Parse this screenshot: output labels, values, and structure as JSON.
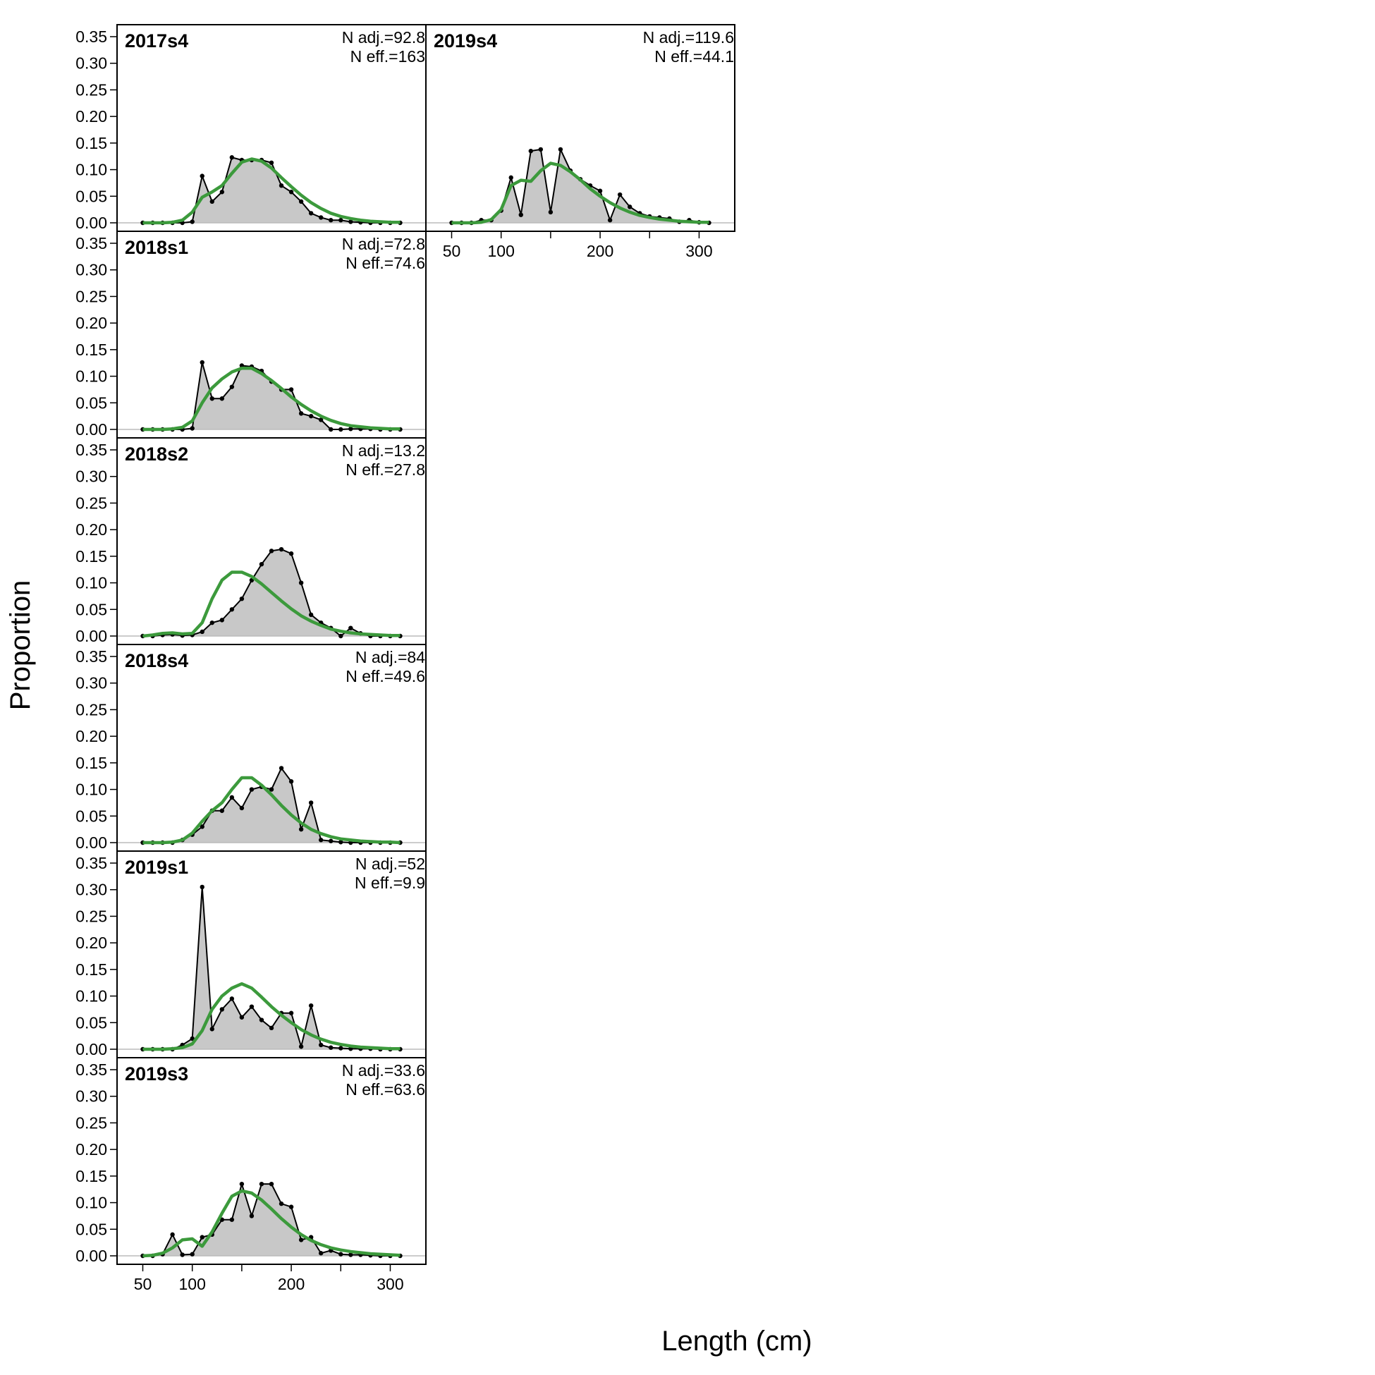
{
  "chart_data": {
    "type": "area",
    "xlabel": "Length (cm)",
    "ylabel": "Proportion",
    "xlim": [
      24,
      336
    ],
    "ylim": [
      0,
      0.35
    ],
    "x_ticks": [
      50,
      100,
      200,
      300
    ],
    "y_ticks": [
      "0.00",
      "0.05",
      "0.10",
      "0.15",
      "0.20",
      "0.25",
      "0.30",
      "0.35"
    ],
    "x": [
      50,
      60,
      70,
      80,
      90,
      100,
      110,
      120,
      130,
      140,
      150,
      160,
      170,
      180,
      190,
      200,
      210,
      220,
      230,
      240,
      250,
      260,
      270,
      280,
      290,
      300,
      310
    ],
    "colors": {
      "observed_fill": "#c8c8c8",
      "observed_line": "#000000",
      "expected_line": "#3c9a3c",
      "zero_line": "#bbbbbb"
    },
    "panels": [
      {
        "title": "2017s4",
        "n_adj": "N adj.=92.8",
        "n_eff": "N eff.=163",
        "observed": [
          0,
          0,
          0,
          0,
          0,
          0.002,
          0.088,
          0.04,
          0.058,
          0.123,
          0.118,
          0.118,
          0.118,
          0.113,
          0.07,
          0.058,
          0.04,
          0.018,
          0.01,
          0.005,
          0.005,
          0.002,
          0.001,
          0,
          0,
          0,
          0
        ],
        "expected": [
          0,
          0,
          0,
          0.001,
          0.005,
          0.02,
          0.048,
          0.058,
          0.07,
          0.093,
          0.114,
          0.12,
          0.116,
          0.103,
          0.085,
          0.068,
          0.052,
          0.038,
          0.027,
          0.018,
          0.012,
          0.008,
          0.005,
          0.003,
          0.002,
          0.001,
          0.001
        ]
      },
      {
        "title": "2018s1",
        "n_adj": "N adj.=72.8",
        "n_eff": "N eff.=74.6",
        "observed": [
          0,
          0,
          0,
          0,
          0,
          0.002,
          0.126,
          0.058,
          0.058,
          0.08,
          0.12,
          0.118,
          0.11,
          0.09,
          0.075,
          0.075,
          0.03,
          0.025,
          0.018,
          0,
          0,
          0.001,
          0.001,
          0.001,
          0,
          0,
          0
        ],
        "expected": [
          0,
          0,
          0,
          0.001,
          0.004,
          0.016,
          0.05,
          0.078,
          0.095,
          0.108,
          0.115,
          0.115,
          0.105,
          0.092,
          0.077,
          0.061,
          0.047,
          0.035,
          0.025,
          0.017,
          0.011,
          0.007,
          0.005,
          0.003,
          0.002,
          0.001,
          0.001
        ]
      },
      {
        "title": "2018s2",
        "n_adj": "N adj.=13.2",
        "n_eff": "N eff.=27.8",
        "observed": [
          0,
          0,
          0.002,
          0.003,
          0.001,
          0.002,
          0.008,
          0.025,
          0.03,
          0.05,
          0.07,
          0.105,
          0.135,
          0.16,
          0.163,
          0.155,
          0.1,
          0.04,
          0.025,
          0.015,
          0,
          0.015,
          0.005,
          0,
          0,
          0,
          0
        ],
        "expected": [
          0,
          0.002,
          0.005,
          0.006,
          0.004,
          0.005,
          0.025,
          0.07,
          0.105,
          0.12,
          0.12,
          0.112,
          0.098,
          0.082,
          0.066,
          0.051,
          0.038,
          0.028,
          0.02,
          0.013,
          0.009,
          0.006,
          0.004,
          0.003,
          0.002,
          0.001,
          0.001
        ]
      },
      {
        "title": "2018s4",
        "n_adj": "N adj.=84",
        "n_eff": "N eff.=49.6",
        "observed": [
          0,
          0,
          0,
          0,
          0.005,
          0.015,
          0.03,
          0.06,
          0.06,
          0.085,
          0.065,
          0.1,
          0.105,
          0.1,
          0.14,
          0.115,
          0.025,
          0.075,
          0.005,
          0.003,
          0.001,
          0,
          0,
          0,
          0,
          0,
          0
        ],
        "expected": [
          0,
          0,
          0,
          0.001,
          0.005,
          0.018,
          0.04,
          0.06,
          0.075,
          0.1,
          0.122,
          0.122,
          0.108,
          0.09,
          0.07,
          0.052,
          0.037,
          0.025,
          0.017,
          0.011,
          0.007,
          0.005,
          0.003,
          0.002,
          0.001,
          0.001,
          0
        ]
      },
      {
        "title": "2019s1",
        "n_adj": "N adj.=52",
        "n_eff": "N eff.=9.9",
        "observed": [
          0,
          0,
          0,
          0,
          0.008,
          0.02,
          0.305,
          0.038,
          0.075,
          0.095,
          0.06,
          0.08,
          0.055,
          0.04,
          0.068,
          0.068,
          0.005,
          0.082,
          0.008,
          0.003,
          0.002,
          0.001,
          0.001,
          0.001,
          0,
          0,
          0
        ],
        "expected": [
          0,
          0,
          0,
          0.001,
          0.003,
          0.01,
          0.035,
          0.075,
          0.1,
          0.115,
          0.123,
          0.115,
          0.098,
          0.08,
          0.064,
          0.05,
          0.037,
          0.027,
          0.019,
          0.013,
          0.009,
          0.006,
          0.004,
          0.003,
          0.002,
          0.001,
          0.001
        ]
      },
      {
        "title": "2019s3",
        "n_adj": "N adj.=33.6",
        "n_eff": "N eff.=63.6",
        "observed": [
          0,
          0,
          0.003,
          0.04,
          0.002,
          0.003,
          0.035,
          0.04,
          0.068,
          0.068,
          0.135,
          0.075,
          0.135,
          0.135,
          0.098,
          0.092,
          0.03,
          0.035,
          0.005,
          0.01,
          0.003,
          0.002,
          0.002,
          0.001,
          0,
          0,
          0
        ],
        "expected": [
          0,
          0.001,
          0.005,
          0.015,
          0.03,
          0.032,
          0.018,
          0.045,
          0.08,
          0.112,
          0.122,
          0.118,
          0.105,
          0.088,
          0.07,
          0.054,
          0.04,
          0.029,
          0.021,
          0.015,
          0.011,
          0.008,
          0.006,
          0.004,
          0.003,
          0.002,
          0.001
        ]
      },
      {
        "title": "2019s4",
        "n_adj": "N adj.=119.6",
        "n_eff": "N eff.=44.1",
        "observed": [
          0,
          0,
          0,
          0.005,
          0.005,
          0.023,
          0.085,
          0.015,
          0.135,
          0.138,
          0.02,
          0.138,
          0.098,
          0.082,
          0.07,
          0.06,
          0.005,
          0.053,
          0.03,
          0.018,
          0.012,
          0.01,
          0.008,
          0.002,
          0.005,
          0.001,
          0
        ],
        "expected": [
          0,
          0,
          0,
          0.001,
          0.006,
          0.025,
          0.07,
          0.08,
          0.078,
          0.098,
          0.112,
          0.108,
          0.096,
          0.081,
          0.064,
          0.05,
          0.038,
          0.028,
          0.02,
          0.014,
          0.01,
          0.007,
          0.005,
          0.003,
          0.002,
          0.001,
          0.001
        ]
      }
    ]
  }
}
